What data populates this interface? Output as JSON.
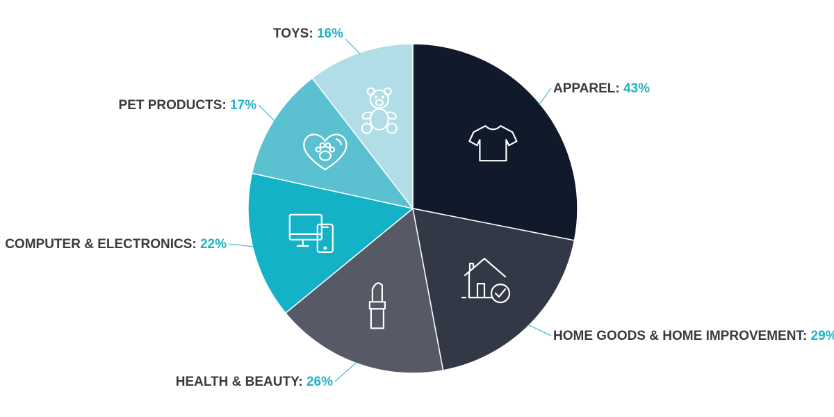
{
  "chart_data": {
    "type": "pie",
    "slices": [
      {
        "label": "APPAREL",
        "value": 43,
        "value_label": "43%",
        "color": "#101a2b",
        "icon": "t-shirt-icon"
      },
      {
        "label": "HOME GOODS & HOME IMPROVEMENT",
        "value": 29,
        "value_label": "29%",
        "color": "#333847",
        "icon": "house-check-icon"
      },
      {
        "label": "HEALTH & BEAUTY",
        "value": 26,
        "value_label": "26%",
        "color": "#585966",
        "icon": "lipstick-icon"
      },
      {
        "label": "COMPUTER & ELECTRONICS",
        "value": 22,
        "value_label": "22%",
        "color": "#14b2c6",
        "icon": "devices-icon"
      },
      {
        "label": "PET PRODUCTS",
        "value": 17,
        "value_label": "17%",
        "color": "#5bc1d1",
        "icon": "paw-heart-icon"
      },
      {
        "label": "TOYS",
        "value": 16,
        "value_label": "16%",
        "color": "#b1dde6",
        "icon": "teddy-bear-icon"
      }
    ],
    "start_angle": "12 o'clock",
    "direction": "clockwise",
    "legend": "none",
    "label_color": "#3a3a3f",
    "value_color": "#1fb3c5"
  }
}
